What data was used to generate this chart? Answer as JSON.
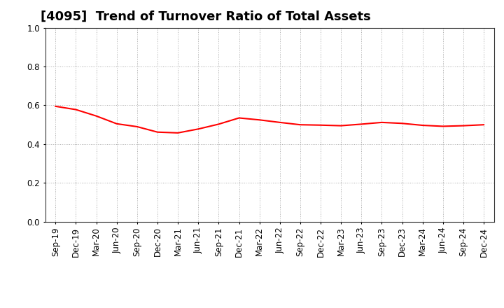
{
  "title": "[4095]  Trend of Turnover Ratio of Total Assets",
  "x_labels": [
    "Sep-19",
    "Dec-19",
    "Mar-20",
    "Jun-20",
    "Sep-20",
    "Dec-20",
    "Mar-21",
    "Jun-21",
    "Sep-21",
    "Dec-21",
    "Mar-22",
    "Jun-22",
    "Sep-22",
    "Dec-22",
    "Mar-23",
    "Jun-23",
    "Sep-23",
    "Dec-23",
    "Mar-24",
    "Jun-24",
    "Sep-24",
    "Dec-24"
  ],
  "y_values": [
    0.595,
    0.578,
    0.545,
    0.505,
    0.49,
    0.462,
    0.458,
    0.478,
    0.503,
    0.535,
    0.525,
    0.512,
    0.5,
    0.498,
    0.495,
    0.503,
    0.512,
    0.507,
    0.497,
    0.492,
    0.495,
    0.5
  ],
  "line_color": "#FF0000",
  "line_width": 1.5,
  "ylim": [
    0.0,
    1.0
  ],
  "yticks": [
    0.0,
    0.2,
    0.4,
    0.6,
    0.8,
    1.0
  ],
  "background_color": "#FFFFFF",
  "grid_color": "#AAAAAA",
  "title_fontsize": 13,
  "tick_fontsize": 8.5
}
